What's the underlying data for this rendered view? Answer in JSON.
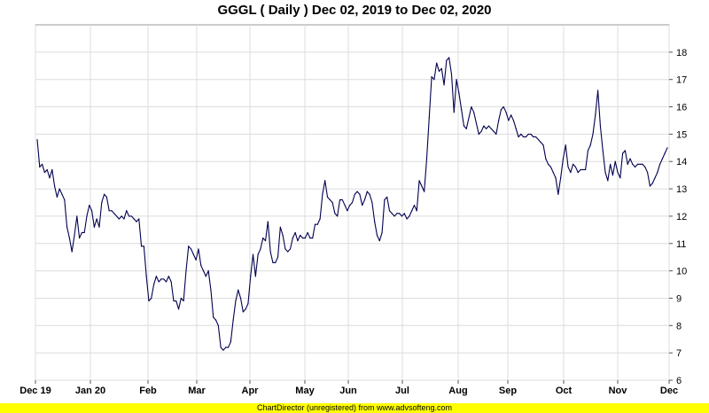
{
  "chart_data": {
    "type": "line",
    "title": "GGGL ( Daily ) Dec 02, 2019 to Dec 02, 2020",
    "xlabel": "",
    "ylabel": "",
    "x_tick_labels": [
      "Dec 19",
      "Jan 20",
      "Feb",
      "Mar",
      "Apr",
      "May",
      "Jun",
      "Jul",
      "Aug",
      "Sep",
      "Oct",
      "Nov",
      "Dec"
    ],
    "y_ticks": [
      6,
      7,
      8,
      9,
      10,
      11,
      12,
      13,
      14,
      15,
      16,
      17,
      18
    ],
    "ylim": [
      6,
      19
    ],
    "grid": true,
    "legend": "none",
    "line_color": "#000050",
    "series": [
      {
        "values": [
          14.8,
          13.8,
          13.9,
          13.6,
          13.7,
          13.4,
          13.7,
          13.1,
          12.7,
          13.0,
          12.8,
          12.6,
          11.6,
          11.2,
          10.7,
          11.3,
          12.0,
          11.2,
          11.4,
          11.4,
          12.0,
          12.4,
          12.2,
          11.6,
          11.9,
          11.6,
          12.5,
          12.8,
          12.7,
          12.2,
          12.2,
          12.1,
          12.0,
          11.9,
          12.0,
          11.9,
          12.2,
          12.0,
          12.0,
          11.9,
          11.8,
          11.9,
          10.9,
          10.9,
          9.8,
          8.9,
          9.0,
          9.5,
          9.8,
          9.6,
          9.7,
          9.7,
          9.6,
          9.8,
          9.6,
          8.9,
          8.9,
          8.6,
          9.0,
          8.9,
          10.0,
          10.9,
          10.8,
          10.6,
          10.4,
          10.8,
          10.2,
          10.0,
          9.8,
          10.0,
          9.3,
          8.3,
          8.2,
          8.0,
          7.2,
          7.1,
          7.2,
          7.2,
          7.4,
          8.2,
          8.9,
          9.3,
          9.0,
          8.5,
          8.6,
          8.8,
          9.8,
          10.6,
          9.8,
          10.6,
          10.8,
          11.2,
          11.1,
          11.8,
          10.7,
          10.3,
          10.3,
          10.5,
          11.6,
          11.3,
          10.8,
          10.7,
          10.8,
          11.2,
          11.4,
          11.1,
          11.3,
          11.2,
          11.2,
          11.4,
          11.2,
          11.2,
          11.7,
          11.7,
          11.9,
          12.8,
          13.3,
          12.7,
          12.6,
          12.5,
          12.1,
          12.0,
          12.6,
          12.6,
          12.4,
          12.2,
          12.4,
          12.5,
          12.8,
          12.9,
          12.8,
          12.4,
          12.6,
          12.9,
          12.8,
          12.5,
          11.8,
          11.3,
          11.1,
          11.4,
          12.6,
          12.7,
          12.2,
          12.1,
          12.0,
          12.1,
          12.1,
          12.0,
          12.1,
          11.9,
          12.0,
          12.2,
          12.4,
          12.2,
          13.3,
          13.1,
          12.9,
          14.1,
          15.6,
          17.1,
          17.0,
          17.6,
          17.3,
          17.4,
          16.8,
          17.7,
          17.8,
          17.2,
          15.8,
          17.0,
          16.5,
          15.9,
          15.3,
          15.2,
          15.6,
          16.0,
          15.8,
          15.4,
          15.0,
          15.1,
          15.3,
          15.2,
          15.3,
          15.2,
          15.1,
          15.0,
          15.5,
          15.9,
          16.0,
          15.8,
          15.5,
          15.7,
          15.5,
          15.2,
          14.9,
          15.0,
          14.9,
          14.9,
          15.0,
          15.0,
          14.9,
          14.9,
          14.8,
          14.7,
          14.6,
          14.1,
          13.9,
          13.8,
          13.6,
          13.4,
          12.8,
          13.4,
          14.1,
          14.6,
          13.8,
          13.6,
          13.9,
          13.8,
          13.6,
          13.7,
          13.7,
          13.7,
          14.4,
          14.6,
          15.0,
          15.7,
          16.6,
          15.3,
          14.4,
          13.6,
          13.3,
          13.9,
          13.5,
          14.0,
          13.6,
          13.4,
          14.3,
          14.4,
          13.9,
          14.1,
          13.9,
          13.8,
          13.9,
          13.9,
          13.9,
          13.8,
          13.6,
          13.1,
          13.2,
          13.4,
          13.6,
          13.9,
          14.1,
          14.3,
          14.5
        ]
      }
    ]
  },
  "footer": {
    "text": "ChartDirector (unregistered) from www.advsofteng.com"
  }
}
